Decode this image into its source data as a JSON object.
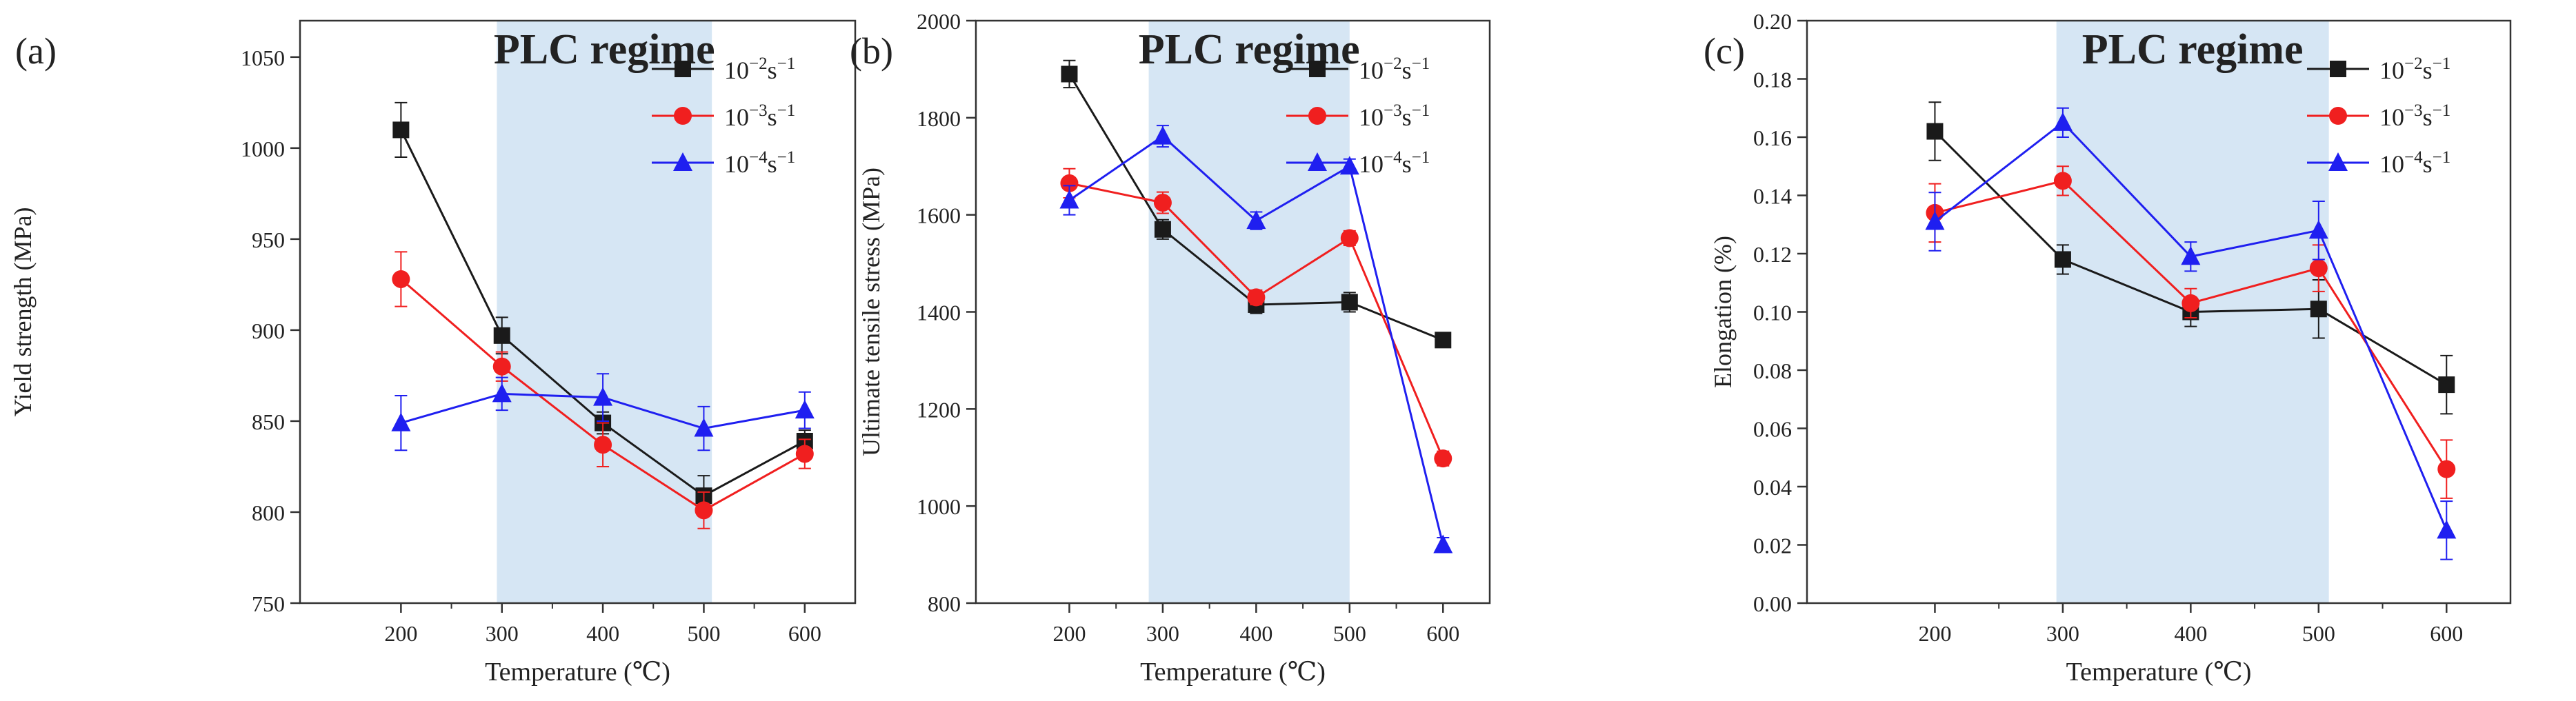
{
  "figure": {
    "series_styles": {
      "r1": {
        "color": "#1a1a1a",
        "marker": "square"
      },
      "r2": {
        "color": "#f01f1f",
        "marker": "circle"
      },
      "r3": {
        "color": "#1f1ff0",
        "marker": "triangle"
      }
    },
    "shade_color": "#d6e6f4"
  },
  "chart_data": [
    {
      "panel_label": "(a)",
      "type": "line",
      "title": "PLC regime",
      "xlabel": "Temperature (℃)",
      "ylabel": "Yield strength (MPa)",
      "x": [
        200,
        300,
        400,
        500,
        600
      ],
      "xticks": [
        "200",
        "300",
        "400",
        "500",
        "600"
      ],
      "xlim": [
        100,
        650
      ],
      "ylim": [
        750,
        1070
      ],
      "yticks": [
        750,
        800,
        850,
        900,
        950,
        1000,
        1050
      ],
      "ytick_labels": [
        "750",
        "800",
        "850",
        "900",
        "950",
        "1000",
        "1050"
      ],
      "shaded_x_range": [
        295,
        508
      ],
      "legend": {
        "placement": "top-right",
        "prefix": "10",
        "exponents": [
          "−2",
          "−3",
          "−4"
        ],
        "suffix": "s",
        "suffix_exp": "−1"
      },
      "series": [
        {
          "key": "r1",
          "name": "10−2s−1",
          "values": [
            1010,
            897,
            849,
            809,
            839
          ],
          "errors": [
            15,
            10,
            6,
            11,
            6
          ]
        },
        {
          "key": "r2",
          "name": "10−3s−1",
          "values": [
            928,
            880,
            837,
            801,
            832
          ],
          "errors": [
            15,
            8,
            12,
            10,
            8
          ]
        },
        {
          "key": "r3",
          "name": "10−4s−1",
          "values": [
            849,
            865,
            863,
            846,
            856
          ],
          "errors": [
            15,
            9,
            13,
            12,
            10
          ]
        }
      ]
    },
    {
      "panel_label": "(b)",
      "type": "line",
      "title": "PLC regime",
      "xlabel": "Temperature (℃)",
      "ylabel": "Ultimate tensile stress (MPa)",
      "x": [
        200,
        300,
        400,
        500,
        600
      ],
      "xticks": [
        "200",
        "300",
        "400",
        "500",
        "600"
      ],
      "xlim": [
        100,
        650
      ],
      "ylim": [
        800,
        2000
      ],
      "yticks": [
        800,
        1000,
        1200,
        1400,
        1600,
        1800,
        2000
      ],
      "ytick_labels": [
        "800",
        "1000",
        "1200",
        "1400",
        "1600",
        "1800",
        "2000"
      ],
      "shaded_x_range": [
        285,
        500
      ],
      "legend": {
        "placement": "top-right",
        "prefix": "10",
        "exponents": [
          "−2",
          "−3",
          "−4"
        ],
        "suffix": "s",
        "suffix_exp": "−1"
      },
      "series": [
        {
          "key": "r1",
          "name": "10−2s−1",
          "values": [
            1890,
            1570,
            1415,
            1420,
            1342
          ],
          "errors": [
            28,
            20,
            18,
            20,
            12
          ]
        },
        {
          "key": "r2",
          "name": "10−3s−1",
          "values": [
            1665,
            1625,
            1430,
            1552,
            1098
          ],
          "errors": [
            30,
            22,
            15,
            15,
            15
          ]
        },
        {
          "key": "r3",
          "name": "10−4s−1",
          "values": [
            1630,
            1762,
            1588,
            1700,
            920
          ],
          "errors": [
            30,
            22,
            18,
            15,
            15
          ]
        }
      ]
    },
    {
      "panel_label": "(c)",
      "type": "line",
      "title": "PLC regime",
      "xlabel": "Temperature (℃)",
      "ylabel": "Elongation (%)",
      "x": [
        200,
        300,
        400,
        500,
        600
      ],
      "xticks": [
        "200",
        "300",
        "400",
        "500",
        "600"
      ],
      "xlim": [
        100,
        650
      ],
      "ylim": [
        0.0,
        0.2
      ],
      "yticks": [
        0,
        0.02,
        0.04,
        0.06,
        0.08,
        0.1,
        0.12,
        0.14,
        0.16,
        0.18,
        0.2
      ],
      "ytick_labels": [
        "0.00",
        "0.02",
        "0.04",
        "0.06",
        "0.08",
        "0.10",
        "0.12",
        "0.14",
        "0.16",
        "0.18",
        "0.20"
      ],
      "shaded_x_range": [
        295,
        508
      ],
      "legend": {
        "placement": "top-right",
        "prefix": "10",
        "exponents": [
          "−2",
          "−3",
          "−4"
        ],
        "suffix": "s",
        "suffix_exp": "−1"
      },
      "series": [
        {
          "key": "r1",
          "name": "10−2s−1",
          "values": [
            0.162,
            0.118,
            0.1,
            0.101,
            0.075
          ],
          "errors": [
            0.01,
            0.005,
            0.005,
            0.01,
            0.01
          ]
        },
        {
          "key": "r2",
          "name": "10−3s−1",
          "values": [
            0.134,
            0.145,
            0.103,
            0.115,
            0.046
          ],
          "errors": [
            0.01,
            0.005,
            0.005,
            0.008,
            0.01
          ]
        },
        {
          "key": "r3",
          "name": "10−4s−1",
          "values": [
            0.131,
            0.165,
            0.119,
            0.128,
            0.025
          ],
          "errors": [
            0.01,
            0.005,
            0.005,
            0.01,
            0.01
          ]
        }
      ]
    }
  ]
}
